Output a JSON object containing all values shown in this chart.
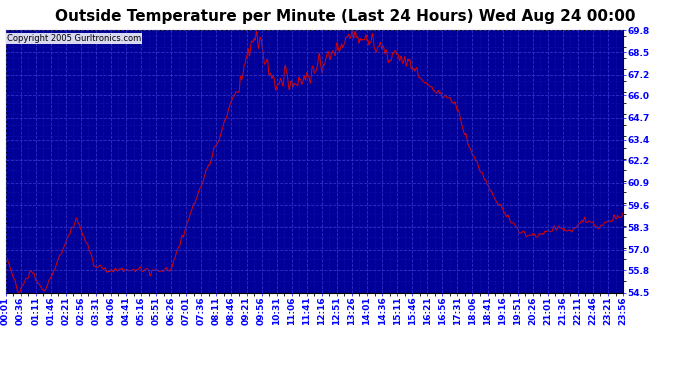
{
  "title": "Outside Temperature per Minute (Last 24 Hours) Wed Aug 24 00:00",
  "copyright": "Copyright 2005 Gurltronics.com",
  "line_color": "#dd0000",
  "plot_bg_color": "#000099",
  "fig_bg_color": "#ffffff",
  "grid_color": "#3333cc",
  "y_min": 54.5,
  "y_max": 69.8,
  "yticks": [
    54.5,
    55.8,
    57.0,
    58.3,
    59.6,
    60.9,
    62.2,
    63.4,
    64.7,
    66.0,
    67.2,
    68.5,
    69.8
  ],
  "xtick_labels": [
    "00:01",
    "00:36",
    "01:11",
    "01:46",
    "02:21",
    "02:56",
    "03:31",
    "04:06",
    "04:41",
    "05:16",
    "05:51",
    "06:26",
    "07:01",
    "07:36",
    "08:11",
    "08:46",
    "09:21",
    "09:56",
    "10:31",
    "11:06",
    "11:41",
    "12:16",
    "12:51",
    "13:26",
    "14:01",
    "14:36",
    "15:11",
    "15:46",
    "16:21",
    "16:56",
    "17:31",
    "18:06",
    "18:41",
    "19:16",
    "19:51",
    "20:26",
    "21:01",
    "21:36",
    "22:11",
    "22:46",
    "23:21",
    "23:56"
  ],
  "title_fontsize": 11,
  "tick_fontsize": 6.5,
  "copyright_fontsize": 6
}
